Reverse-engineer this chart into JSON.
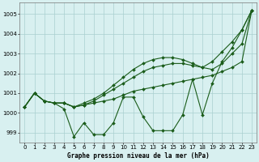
{
  "x": [
    0,
    1,
    2,
    3,
    4,
    5,
    6,
    7,
    8,
    9,
    10,
    11,
    12,
    13,
    14,
    15,
    16,
    17,
    18,
    19,
    20,
    21,
    22,
    23
  ],
  "line1": [
    1000.3,
    1001.0,
    1000.6,
    1000.5,
    1000.2,
    998.8,
    999.5,
    998.9,
    998.9,
    999.5,
    1000.8,
    1000.8,
    999.8,
    999.1,
    999.1,
    999.1,
    999.9,
    1001.7,
    999.9,
    1001.5,
    1002.6,
    1003.3,
    1004.2,
    1005.2
  ],
  "line2": [
    1000.3,
    1001.0,
    1000.6,
    1000.5,
    1000.5,
    1000.3,
    1000.4,
    1000.5,
    1000.6,
    1000.7,
    1000.9,
    1001.1,
    1001.2,
    1001.3,
    1001.4,
    1001.5,
    1001.6,
    1001.7,
    1001.8,
    1001.9,
    1002.1,
    1002.3,
    1002.6,
    1005.2
  ],
  "line3": [
    1000.3,
    1001.0,
    1000.6,
    1000.5,
    1000.5,
    1000.3,
    1000.4,
    1000.6,
    1000.9,
    1001.2,
    1001.5,
    1001.8,
    1002.1,
    1002.3,
    1002.4,
    1002.5,
    1002.5,
    1002.4,
    1002.3,
    1002.2,
    1002.5,
    1003.0,
    1003.5,
    1005.2
  ],
  "line4": [
    1000.3,
    1001.0,
    1000.6,
    1000.5,
    1000.5,
    1000.3,
    1000.5,
    1000.7,
    1001.0,
    1001.4,
    1001.8,
    1002.2,
    1002.5,
    1002.7,
    1002.8,
    1002.8,
    1002.7,
    1002.5,
    1002.3,
    1002.6,
    1003.1,
    1003.6,
    1004.2,
    1005.2
  ],
  "line_color": "#1a5c1a",
  "bg_color": "#d8f0f0",
  "grid_color": "#aacfcf",
  "title": "Graphe pression niveau de la mer (hPa)",
  "xlim": [
    -0.5,
    23.5
  ],
  "ylim": [
    998.5,
    1005.6
  ],
  "yticks": [
    999,
    1000,
    1001,
    1002,
    1003,
    1004,
    1005
  ],
  "xticks": [
    0,
    1,
    2,
    3,
    4,
    5,
    6,
    7,
    8,
    9,
    10,
    11,
    12,
    13,
    14,
    15,
    16,
    17,
    18,
    19,
    20,
    21,
    22,
    23
  ],
  "tick_fontsize": 5.0,
  "xlabel_fontsize": 5.5
}
